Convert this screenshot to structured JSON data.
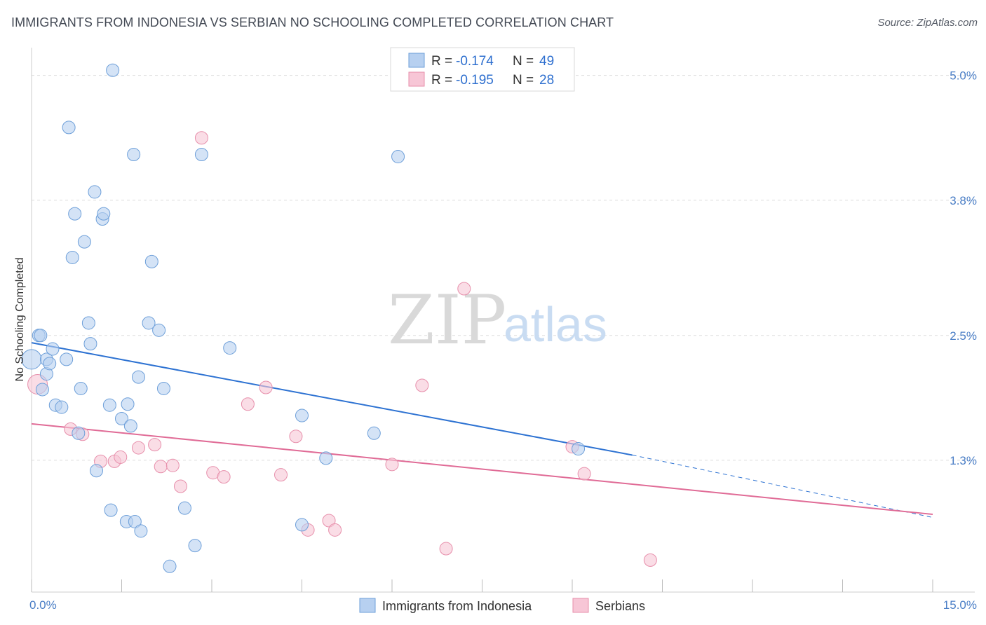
{
  "header": {
    "title": "IMMIGRANTS FROM INDONESIA VS SERBIAN NO SCHOOLING COMPLETED CORRELATION CHART",
    "source": "Source: ZipAtlas.com"
  },
  "watermark": {
    "zip": "ZIP",
    "atlas": "atlas"
  },
  "colors": {
    "blue_fill": "#b7d0f0",
    "blue_stroke": "#6d9fd9",
    "blue_line": "#2d72d2",
    "pink_fill": "#f7c6d6",
    "pink_stroke": "#e78fab",
    "pink_line": "#e06b96",
    "tick_text": "#4a7ec6",
    "grid": "#dddddd"
  },
  "legend": {
    "rows": [
      {
        "r_label": "R =",
        "r_value": "-0.174",
        "n_label": "N =",
        "n_value": "49",
        "series": "blue"
      },
      {
        "r_label": "R =",
        "r_value": "-0.195",
        "n_label": "N =",
        "n_value": "28",
        "series": "pink"
      }
    ]
  },
  "bottom_legend": {
    "items": [
      {
        "label": "Immigrants from Indonesia",
        "series": "blue"
      },
      {
        "label": "Serbians",
        "series": "pink"
      }
    ]
  },
  "chart_data": {
    "type": "scatter",
    "title": "IMMIGRANTS FROM INDONESIA VS SERBIAN NO SCHOOLING COMPLETED CORRELATION CHART",
    "xlabel": "",
    "ylabel": "No Schooling Completed",
    "xlim": [
      0,
      15
    ],
    "ylim": [
      0.1,
      5.2
    ],
    "x_tick_labels": [
      {
        "value": 0,
        "label": "0.0%"
      },
      {
        "value": 15,
        "label": "15.0%"
      }
    ],
    "x_minor_ticks": [
      0,
      1.5,
      3.0,
      4.5,
      6.0,
      7.5,
      9.0,
      10.5,
      12.0,
      13.5,
      15.0
    ],
    "y_ticks": [
      {
        "value": 5.0,
        "label": "5.0%"
      },
      {
        "value": 3.8,
        "label": "3.8%"
      },
      {
        "value": 2.5,
        "label": "2.5%"
      },
      {
        "value": 1.3,
        "label": "1.3%"
      }
    ],
    "grid": true,
    "series": [
      {
        "name": "Immigrants from Indonesia",
        "color": "blue",
        "r": -0.174,
        "n": 49,
        "trend": {
          "x0": 0,
          "y0": 2.43,
          "x1": 10.0,
          "y1": 1.35,
          "dash_to_x": 15,
          "dash_to_y": 0.75
        },
        "points": [
          [
            0.0,
            2.27,
            14
          ],
          [
            0.12,
            2.5,
            9
          ],
          [
            0.15,
            2.5,
            9
          ],
          [
            0.18,
            1.98,
            9
          ],
          [
            0.25,
            2.27,
            9
          ],
          [
            0.25,
            2.13,
            9
          ],
          [
            0.3,
            2.23,
            9
          ],
          [
            0.35,
            2.37,
            9
          ],
          [
            0.4,
            1.83,
            9
          ],
          [
            0.5,
            1.81,
            9
          ],
          [
            0.58,
            2.27,
            9
          ],
          [
            0.62,
            4.5,
            9
          ],
          [
            0.68,
            3.25,
            9
          ],
          [
            0.72,
            3.67,
            9
          ],
          [
            0.78,
            1.56,
            9
          ],
          [
            0.82,
            1.99,
            9
          ],
          [
            0.88,
            3.4,
            9
          ],
          [
            0.95,
            2.62,
            9
          ],
          [
            0.98,
            2.42,
            9
          ],
          [
            1.05,
            3.88,
            9
          ],
          [
            1.08,
            1.2,
            9
          ],
          [
            1.18,
            3.62,
            9
          ],
          [
            1.2,
            3.67,
            9
          ],
          [
            1.3,
            1.83,
            9
          ],
          [
            1.32,
            0.82,
            9
          ],
          [
            1.35,
            5.05,
            9
          ],
          [
            1.5,
            1.7,
            9
          ],
          [
            1.58,
            0.71,
            9
          ],
          [
            1.6,
            1.84,
            9
          ],
          [
            1.65,
            1.63,
            9
          ],
          [
            1.7,
            4.24,
            9
          ],
          [
            1.72,
            0.71,
            9
          ],
          [
            1.78,
            2.1,
            9
          ],
          [
            1.82,
            0.62,
            9
          ],
          [
            1.95,
            2.62,
            9
          ],
          [
            2.0,
            3.21,
            9
          ],
          [
            2.12,
            2.55,
            9
          ],
          [
            2.2,
            1.99,
            9
          ],
          [
            2.3,
            0.28,
            9
          ],
          [
            2.55,
            0.84,
            9
          ],
          [
            2.72,
            0.48,
            9
          ],
          [
            2.83,
            4.24,
            9
          ],
          [
            3.3,
            2.38,
            9
          ],
          [
            4.5,
            0.68,
            9
          ],
          [
            4.5,
            1.73,
            9
          ],
          [
            4.9,
            1.32,
            9
          ],
          [
            5.7,
            1.56,
            9
          ],
          [
            6.1,
            4.22,
            9
          ],
          [
            9.1,
            1.41,
            9
          ]
        ]
      },
      {
        "name": "Serbians",
        "color": "pink",
        "r": -0.195,
        "n": 28,
        "trend": {
          "x0": 0,
          "y0": 1.65,
          "x1": 15,
          "y1": 0.78
        },
        "points": [
          [
            0.1,
            2.03,
            14
          ],
          [
            0.65,
            1.6,
            9
          ],
          [
            0.85,
            1.55,
            9
          ],
          [
            1.15,
            1.29,
            9
          ],
          [
            1.38,
            1.29,
            9
          ],
          [
            1.48,
            1.33,
            9
          ],
          [
            1.78,
            1.42,
            9
          ],
          [
            2.05,
            1.45,
            9
          ],
          [
            2.15,
            1.24,
            9
          ],
          [
            2.35,
            1.25,
            9
          ],
          [
            2.48,
            1.05,
            9
          ],
          [
            2.83,
            4.4,
            9
          ],
          [
            3.02,
            1.18,
            9
          ],
          [
            3.2,
            1.14,
            9
          ],
          [
            3.6,
            1.84,
            9
          ],
          [
            3.9,
            2.0,
            9
          ],
          [
            4.15,
            1.16,
            9
          ],
          [
            4.4,
            1.53,
            9
          ],
          [
            4.6,
            0.63,
            9
          ],
          [
            4.95,
            0.72,
            9
          ],
          [
            5.05,
            0.63,
            9
          ],
          [
            6.0,
            1.26,
            9
          ],
          [
            6.5,
            2.02,
            9
          ],
          [
            6.9,
            0.45,
            9
          ],
          [
            7.2,
            2.95,
            9
          ],
          [
            9.0,
            1.43,
            9
          ],
          [
            9.2,
            1.17,
            9
          ],
          [
            10.3,
            0.34,
            9
          ]
        ]
      }
    ]
  }
}
